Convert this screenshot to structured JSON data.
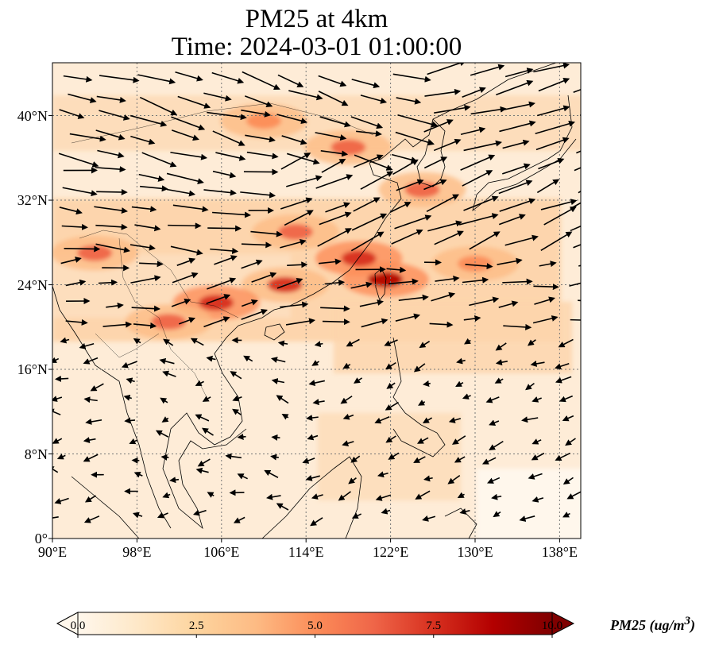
{
  "title": {
    "line1": "PM25 at 4km",
    "line2": "Time: 2024-03-01 01:00:00"
  },
  "map": {
    "extent": {
      "lon": [
        90,
        140
      ],
      "lat": [
        0,
        45
      ]
    },
    "lat_ticks": [
      "0°",
      "8°N",
      "16°N",
      "24°N",
      "32°N",
      "40°N"
    ],
    "lon_ticks": [
      "90°E",
      "98°E",
      "106°E",
      "114°E",
      "122°E",
      "130°E",
      "138°E"
    ],
    "gridlines": true,
    "overlay": "wind vectors",
    "colormap": "OrRd"
  },
  "colorbar": {
    "label": "PM25 (ug/m",
    "label_superscript": "3",
    "label_close": ")",
    "ticks": [
      "0.0",
      "2.5",
      "5.0",
      "7.5",
      "10.0"
    ],
    "range": [
      0,
      10
    ],
    "extend": "both",
    "colors": [
      "#fff7ec",
      "#fee8c8",
      "#fdd49e",
      "#fdbb84",
      "#fc8d59",
      "#ef6548",
      "#d7301f",
      "#b30000",
      "#7f0000"
    ]
  },
  "chart_data": {
    "type": "heatmap",
    "variable": "PM25",
    "units": "ug/m3",
    "hotspots": [
      {
        "lon": 121.5,
        "lat": 24.5,
        "value": 8.5
      },
      {
        "lon": 119.0,
        "lat": 26.5,
        "value": 8.0
      },
      {
        "lon": 112.0,
        "lat": 24.0,
        "value": 7.0
      },
      {
        "lon": 105.5,
        "lat": 22.3,
        "value": 7.5
      },
      {
        "lon": 113.0,
        "lat": 29.0,
        "value": 6.5
      },
      {
        "lon": 125.0,
        "lat": 33.0,
        "value": 6.5
      },
      {
        "lon": 118.0,
        "lat": 37.0,
        "value": 6.0
      },
      {
        "lon": 110.0,
        "lat": 39.5,
        "value": 5.5
      },
      {
        "lon": 94.0,
        "lat": 27.0,
        "value": 6.0
      },
      {
        "lon": 130.0,
        "lat": 26.0,
        "value": 5.5
      },
      {
        "lon": 101.0,
        "lat": 20.5,
        "value": 6.0
      }
    ]
  }
}
